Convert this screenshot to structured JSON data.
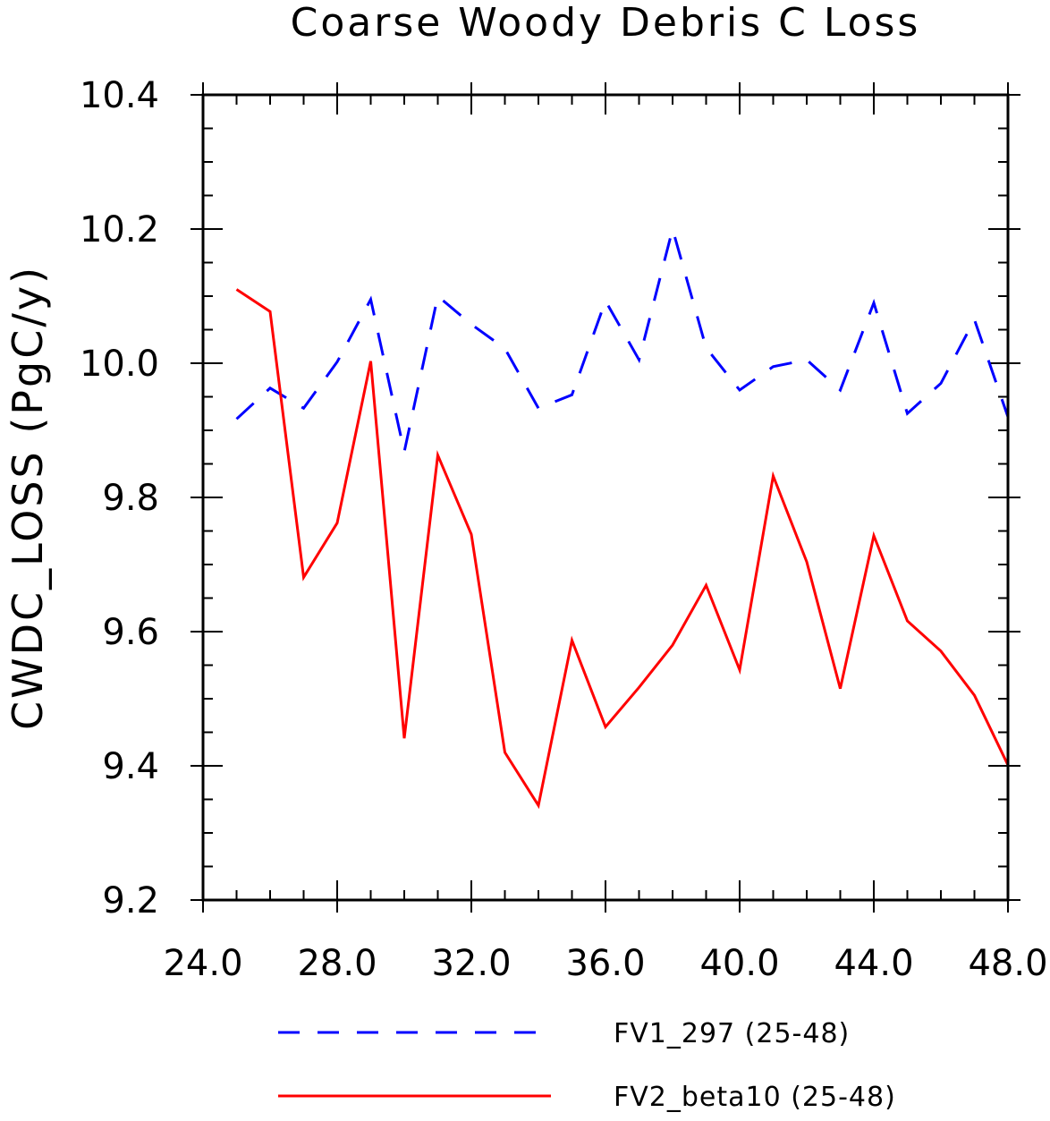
{
  "chart_data": {
    "type": "line",
    "title": "Coarse Woody Debris C Loss",
    "xlabel": "",
    "ylabel": "CWDC_LOSS  (PgC/y)",
    "xlim": [
      24.0,
      48.0
    ],
    "ylim": [
      9.2,
      10.4
    ],
    "x_ticks": [
      "24.0",
      "28.0",
      "32.0",
      "36.0",
      "40.0",
      "44.0",
      "48.0"
    ],
    "y_ticks": [
      "9.2",
      "9.4",
      "9.6",
      "9.8",
      "10.0",
      "10.2",
      "10.4"
    ],
    "grid": false,
    "legend_position": "bottom",
    "x": [
      25,
      26,
      27,
      28,
      29,
      30,
      31,
      32,
      33,
      34,
      35,
      36,
      37,
      38,
      39,
      40,
      41,
      42,
      43,
      44,
      45,
      46,
      47,
      48
    ],
    "series": [
      {
        "name": "FV1_297 (25-48)",
        "color": "#0000ff",
        "dash": "dashed",
        "values": [
          9.917,
          9.963,
          9.933,
          10.002,
          10.095,
          9.868,
          10.1,
          10.058,
          10.022,
          9.933,
          9.953,
          10.093,
          10.005,
          10.2,
          10.023,
          9.96,
          9.995,
          10.005,
          9.96,
          10.09,
          9.925,
          9.97,
          10.065,
          9.92
        ]
      },
      {
        "name": "FV2_beta10 (25-48)",
        "color": "#ff0000",
        "dash": "solid",
        "values": [
          10.11,
          10.077,
          9.681,
          9.762,
          10.003,
          9.441,
          9.863,
          9.745,
          9.42,
          9.341,
          9.587,
          9.458,
          9.517,
          9.58,
          9.669,
          9.543,
          9.832,
          9.704,
          9.515,
          9.743,
          9.616,
          9.571,
          9.505,
          9.401
        ]
      }
    ]
  }
}
